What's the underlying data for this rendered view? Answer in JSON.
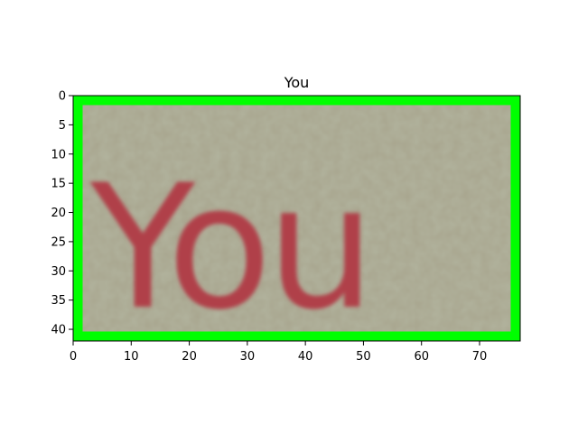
{
  "title": "You",
  "image": {
    "word": "You",
    "background_color": "#a8a58e",
    "text_color": "#b0404a",
    "border_color": "#00ff00"
  },
  "x_axis": {
    "min": 0,
    "max": 77,
    "ticks": [
      0,
      10,
      20,
      30,
      40,
      50,
      60,
      70
    ]
  },
  "y_axis": {
    "min": 0,
    "max": 42,
    "inverted": true,
    "ticks": [
      0,
      5,
      10,
      15,
      20,
      25,
      30,
      35,
      40
    ]
  }
}
